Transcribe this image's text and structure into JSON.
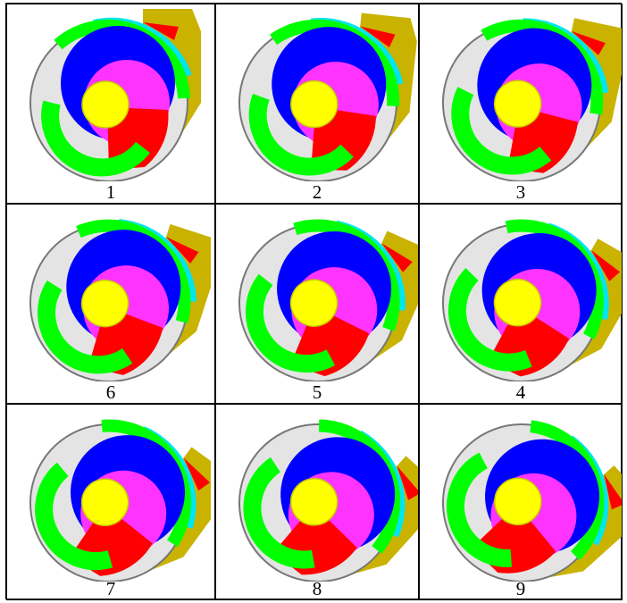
{
  "table": {
    "rows": [
      [
        "1",
        "2",
        "3"
      ],
      [
        "6",
        "5",
        "4"
      ],
      [
        "7",
        "8",
        "9"
      ]
    ]
  }
}
